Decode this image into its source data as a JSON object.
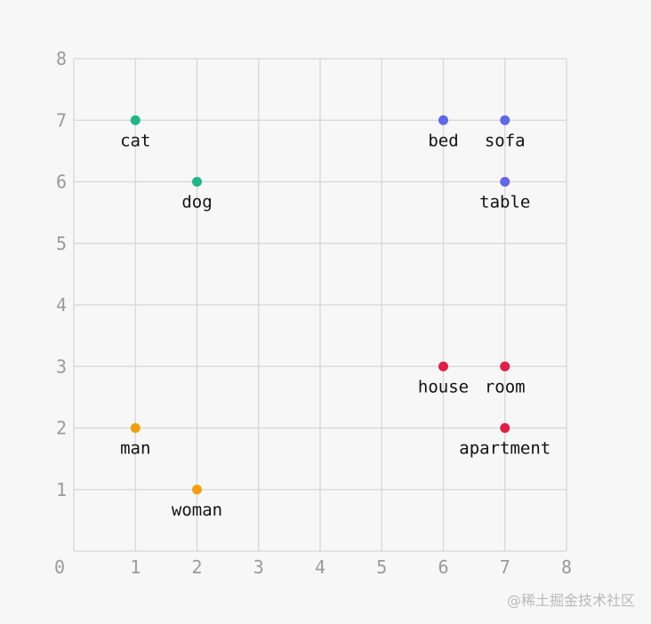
{
  "chart_data": {
    "type": "scatter",
    "title": "",
    "xlabel": "",
    "ylabel": "",
    "xlim": [
      0,
      8
    ],
    "ylim": [
      0,
      8
    ],
    "grid": true,
    "x_ticks": [
      "0",
      "1",
      "2",
      "3",
      "4",
      "5",
      "6",
      "7",
      "8"
    ],
    "y_ticks": [
      "1",
      "2",
      "3",
      "4",
      "5",
      "6",
      "7",
      "8"
    ],
    "groups": [
      {
        "color": "#1db886",
        "points": [
          {
            "label": "cat",
            "x": 1,
            "y": 7
          },
          {
            "label": "dog",
            "x": 2,
            "y": 6
          }
        ]
      },
      {
        "color": "#6366e8",
        "points": [
          {
            "label": "bed",
            "x": 6,
            "y": 7
          },
          {
            "label": "sofa",
            "x": 7,
            "y": 7
          },
          {
            "label": "table",
            "x": 7,
            "y": 6
          }
        ]
      },
      {
        "color": "#e11d48",
        "points": [
          {
            "label": "house",
            "x": 6,
            "y": 3
          },
          {
            "label": "room",
            "x": 7,
            "y": 3
          },
          {
            "label": "apartment",
            "x": 7,
            "y": 2
          }
        ]
      },
      {
        "color": "#f59e0b",
        "points": [
          {
            "label": "man",
            "x": 1,
            "y": 2
          },
          {
            "label": "woman",
            "x": 2,
            "y": 1
          }
        ]
      }
    ]
  },
  "watermark": "@稀土掘金技术社区"
}
